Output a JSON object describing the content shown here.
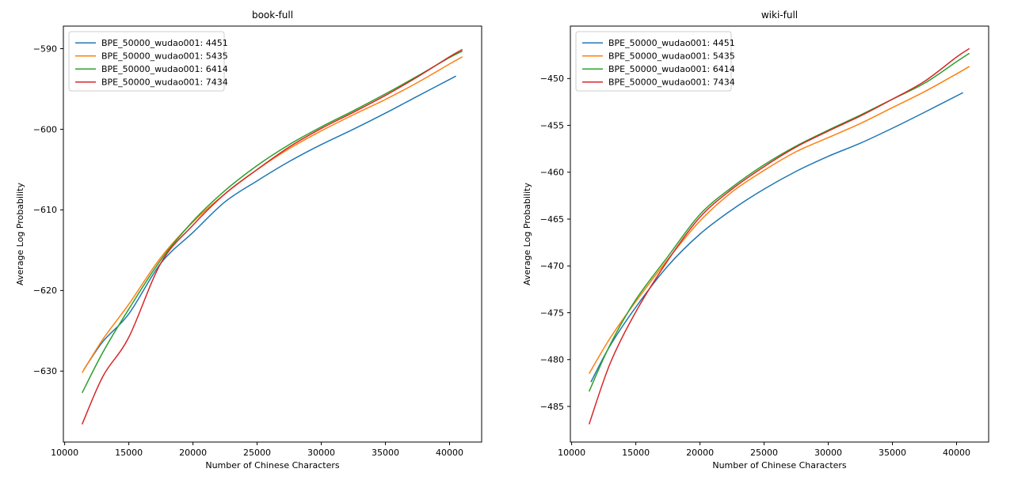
{
  "figure": {
    "background": "#ffffff",
    "frame_color": "#000000",
    "legend_border_color": "#cccccc",
    "legend_background": "#ffffff"
  },
  "chart_data": [
    {
      "type": "line",
      "title": "book-full",
      "xlabel": "Number of Chinese Characters",
      "ylabel": "Average Log Probability",
      "xlim": [
        9900,
        42500
      ],
      "ylim": [
        -638.8,
        -587.2
      ],
      "xticks": [
        10000,
        15000,
        20000,
        25000,
        30000,
        35000,
        40000
      ],
      "yticks": [
        -630,
        -620,
        -610,
        -600,
        -590
      ],
      "grid": false,
      "legend_position": "upper-left",
      "series": [
        {
          "name": "BPE_50000_wudao001: 4451",
          "color": "#1f77b4",
          "x": [
            11500,
            13000,
            15000,
            17500,
            20000,
            22500,
            25000,
            27500,
            30000,
            32500,
            35000,
            37500,
            40500
          ],
          "values": [
            -629.8,
            -626.3,
            -622.9,
            -616.6,
            -612.8,
            -609.0,
            -606.4,
            -604.0,
            -601.9,
            -600.0,
            -598.0,
            -595.9,
            -593.4
          ]
        },
        {
          "name": "BPE_50000_wudao001: 5435",
          "color": "#ff7f0e",
          "x": [
            11360,
            13000,
            15000,
            17500,
            20000,
            22500,
            25000,
            27500,
            30000,
            32500,
            35000,
            37500,
            40000,
            41000
          ],
          "values": [
            -630.2,
            -626.0,
            -621.7,
            -615.9,
            -611.5,
            -608.0,
            -605.0,
            -602.4,
            -600.2,
            -598.2,
            -596.3,
            -594.2,
            -591.9,
            -591.0
          ]
        },
        {
          "name": "BPE_50000_wudao001: 6414",
          "color": "#2ca02c",
          "x": [
            11360,
            13000,
            15000,
            17500,
            20000,
            22500,
            25000,
            27500,
            30000,
            32500,
            35000,
            37500,
            40000,
            41000
          ],
          "values": [
            -632.7,
            -627.6,
            -622.3,
            -616.2,
            -611.4,
            -607.6,
            -604.5,
            -601.9,
            -599.7,
            -597.7,
            -595.6,
            -593.4,
            -591.1,
            -590.3
          ]
        },
        {
          "name": "BPE_50000_wudao001: 7434",
          "color": "#d62728",
          "x": [
            11360,
            13000,
            15000,
            17500,
            20000,
            22500,
            25000,
            27500,
            30000,
            32500,
            35000,
            37500,
            40000,
            41000
          ],
          "values": [
            -636.6,
            -630.6,
            -625.8,
            -616.6,
            -611.9,
            -608.0,
            -605.0,
            -602.2,
            -599.9,
            -597.9,
            -595.8,
            -593.5,
            -591.0,
            -590.1
          ]
        }
      ]
    },
    {
      "type": "line",
      "title": "wiki-full",
      "xlabel": "Number of Chinese Characters",
      "ylabel": "Average Log Probability",
      "xlim": [
        9900,
        42500
      ],
      "ylim": [
        -488.8,
        -444.4
      ],
      "xticks": [
        10000,
        15000,
        20000,
        25000,
        30000,
        35000,
        40000
      ],
      "yticks": [
        -485,
        -480,
        -475,
        -470,
        -465,
        -460,
        -455,
        -450
      ],
      "grid": false,
      "legend_position": "upper-left",
      "series": [
        {
          "name": "BPE_50000_wudao001: 4451",
          "color": "#1f77b4",
          "x": [
            11500,
            13000,
            15000,
            17500,
            20000,
            22500,
            25000,
            27500,
            30000,
            32500,
            35000,
            37500,
            40500
          ],
          "values": [
            -482.4,
            -478.5,
            -474.4,
            -470.0,
            -466.6,
            -464.0,
            -461.8,
            -459.9,
            -458.3,
            -456.9,
            -455.3,
            -453.6,
            -451.5
          ]
        },
        {
          "name": "BPE_50000_wudao001: 5435",
          "color": "#ff7f0e",
          "x": [
            11360,
            13000,
            15000,
            17500,
            20000,
            22500,
            25000,
            27500,
            30000,
            32500,
            35000,
            37500,
            40000,
            41000
          ],
          "values": [
            -481.5,
            -477.7,
            -473.8,
            -469.3,
            -465.2,
            -462.1,
            -459.8,
            -457.8,
            -456.3,
            -454.8,
            -453.1,
            -451.4,
            -449.5,
            -448.7
          ]
        },
        {
          "name": "BPE_50000_wudao001: 6414",
          "color": "#2ca02c",
          "x": [
            11360,
            13000,
            15000,
            17500,
            20000,
            22500,
            25000,
            27500,
            30000,
            32500,
            35000,
            37500,
            40000,
            41000
          ],
          "values": [
            -483.4,
            -478.4,
            -473.6,
            -469.0,
            -464.5,
            -461.6,
            -459.2,
            -457.2,
            -455.5,
            -453.9,
            -452.2,
            -450.5,
            -448.2,
            -447.3
          ]
        },
        {
          "name": "BPE_50000_wudao001: 7434",
          "color": "#d62728",
          "x": [
            11360,
            13000,
            15000,
            17500,
            20000,
            22500,
            25000,
            27500,
            30000,
            32500,
            35000,
            37500,
            40000,
            41000
          ],
          "values": [
            -486.9,
            -480.4,
            -474.9,
            -469.4,
            -464.8,
            -461.8,
            -459.4,
            -457.3,
            -455.6,
            -454.0,
            -452.2,
            -450.3,
            -447.7,
            -446.8
          ]
        }
      ]
    }
  ]
}
